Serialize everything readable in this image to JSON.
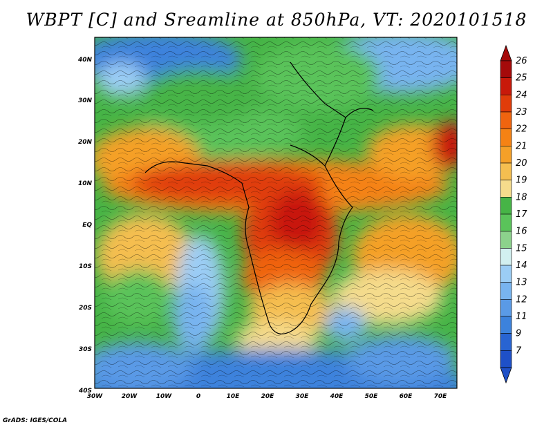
{
  "title": "WBPT [C] and Sreamline at 850hPa, VT: 2020101518",
  "credit": "GrADS: IGES/COLA",
  "map": {
    "lon_labels": [
      "30W",
      "20W",
      "10W",
      "0",
      "10E",
      "20E",
      "30E",
      "40E",
      "50E",
      "60E",
      "70E"
    ],
    "lat_labels": [
      "40N",
      "30N",
      "20N",
      "10N",
      "EQ",
      "10S",
      "20S",
      "30S",
      "40S"
    ]
  },
  "colorbar": {
    "levels": [
      "26",
      "25",
      "24",
      "23",
      "22",
      "21",
      "20",
      "19",
      "18",
      "17",
      "16",
      "15",
      "14",
      "13",
      "12",
      "11",
      "9",
      "7"
    ],
    "colors": [
      "#a50a0a",
      "#c8190a",
      "#e03c0a",
      "#f0640f",
      "#f58214",
      "#f5a028",
      "#f5be50",
      "#f5dc8c",
      "#46b446",
      "#5ac35a",
      "#8cd28c",
      "#d2f0f0",
      "#9bcdf5",
      "#78b4f0",
      "#5a9ae6",
      "#3c82dc",
      "#2864d2",
      "#1e50c8"
    ]
  }
}
